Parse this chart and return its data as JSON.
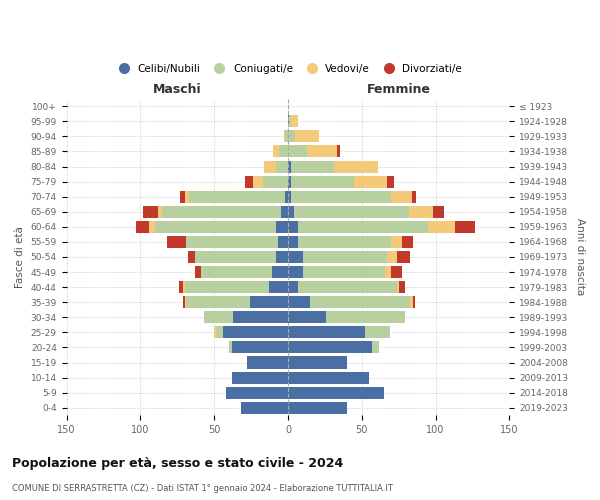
{
  "age_groups": [
    "0-4",
    "5-9",
    "10-14",
    "15-19",
    "20-24",
    "25-29",
    "30-34",
    "35-39",
    "40-44",
    "45-49",
    "50-54",
    "55-59",
    "60-64",
    "65-69",
    "70-74",
    "75-79",
    "80-84",
    "85-89",
    "90-94",
    "95-99",
    "100+"
  ],
  "birth_years": [
    "2019-2023",
    "2014-2018",
    "2009-2013",
    "2004-2008",
    "1999-2003",
    "1994-1998",
    "1989-1993",
    "1984-1988",
    "1979-1983",
    "1974-1978",
    "1969-1973",
    "1964-1968",
    "1959-1963",
    "1954-1958",
    "1949-1953",
    "1944-1948",
    "1939-1943",
    "1934-1938",
    "1929-1933",
    "1924-1928",
    "≤ 1923"
  ],
  "colors": {
    "celibe": "#4a6fa5",
    "coniugato": "#b8cfa0",
    "vedovo": "#f5c97a",
    "divorziato": "#c0392b"
  },
  "maschi": {
    "celibe": [
      32,
      42,
      38,
      28,
      38,
      44,
      37,
      26,
      13,
      11,
      8,
      7,
      8,
      5,
      2,
      0,
      0,
      0,
      0,
      0,
      0
    ],
    "coniugato": [
      0,
      0,
      0,
      0,
      2,
      5,
      20,
      43,
      57,
      48,
      55,
      62,
      82,
      80,
      65,
      17,
      8,
      6,
      2,
      0,
      0
    ],
    "vedovo": [
      0,
      0,
      0,
      0,
      0,
      1,
      0,
      1,
      1,
      0,
      0,
      0,
      4,
      3,
      3,
      7,
      8,
      4,
      1,
      0,
      0
    ],
    "divorziato": [
      0,
      0,
      0,
      0,
      0,
      0,
      0,
      1,
      3,
      4,
      5,
      13,
      9,
      10,
      3,
      5,
      0,
      0,
      0,
      0,
      0
    ]
  },
  "femmine": {
    "celibe": [
      40,
      65,
      55,
      40,
      57,
      52,
      26,
      15,
      7,
      10,
      10,
      7,
      7,
      4,
      2,
      2,
      2,
      0,
      0,
      1,
      0
    ],
    "coniugato": [
      0,
      0,
      0,
      0,
      5,
      17,
      53,
      68,
      67,
      56,
      57,
      63,
      88,
      78,
      68,
      43,
      29,
      13,
      5,
      1,
      0
    ],
    "vedovo": [
      0,
      0,
      0,
      0,
      0,
      0,
      0,
      2,
      1,
      4,
      7,
      7,
      18,
      16,
      14,
      22,
      30,
      20,
      16,
      5,
      0
    ],
    "divorziato": [
      0,
      0,
      0,
      0,
      0,
      0,
      0,
      1,
      4,
      7,
      9,
      8,
      14,
      8,
      3,
      5,
      0,
      2,
      0,
      0,
      0
    ]
  },
  "title": "Popolazione per età, sesso e stato civile - 2024",
  "subtitle": "COMUNE DI SERRASTRETTA (CZ) - Dati ISTAT 1° gennaio 2024 - Elaborazione TUTTITALIA.IT",
  "xlabel_left": "Maschi",
  "xlabel_right": "Femmine",
  "ylabel_left": "Fasce di età",
  "ylabel_right": "Anni di nascita",
  "xlim": 150,
  "legend_labels": [
    "Celibi/Nubili",
    "Coniugati/e",
    "Vedovi/e",
    "Divorziati/e"
  ],
  "bg_color": "#ffffff",
  "grid_color": "#cccccc",
  "bar_height": 0.8
}
